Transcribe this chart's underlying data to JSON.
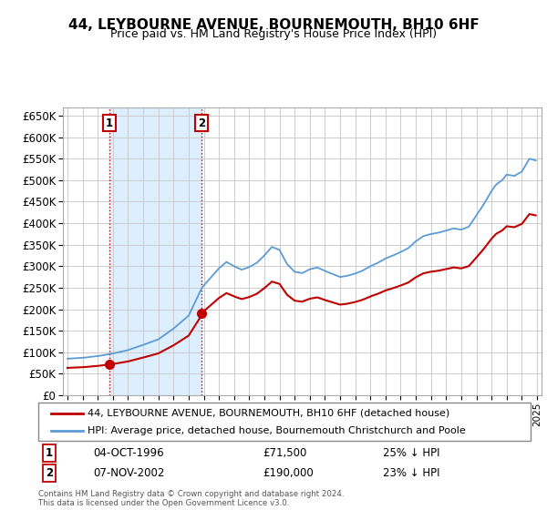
{
  "title": "44, LEYBOURNE AVENUE, BOURNEMOUTH, BH10 6HF",
  "subtitle": "Price paid vs. HM Land Registry's House Price Index (HPI)",
  "legend_line1": "44, LEYBOURNE AVENUE, BOURNEMOUTH, BH10 6HF (detached house)",
  "legend_line2": "HPI: Average price, detached house, Bournemouth Christchurch and Poole",
  "table_row1": [
    "1",
    "04-OCT-1996",
    "£71,500",
    "25% ↓ HPI"
  ],
  "table_row2": [
    "2",
    "07-NOV-2002",
    "£190,000",
    "23% ↓ HPI"
  ],
  "footer": "Contains HM Land Registry data © Crown copyright and database right 2024.\nThis data is licensed under the Open Government Licence v3.0.",
  "sale1_year": 1996.75,
  "sale1_price": 71500,
  "sale2_year": 2002.85,
  "sale2_price": 190000,
  "hpi_color": "#5b9bd5",
  "price_color": "#c00000",
  "vline_color": "#c00000",
  "shade_color": "#ddeeff",
  "ylim_max": 670000,
  "ylim_min": 0
}
